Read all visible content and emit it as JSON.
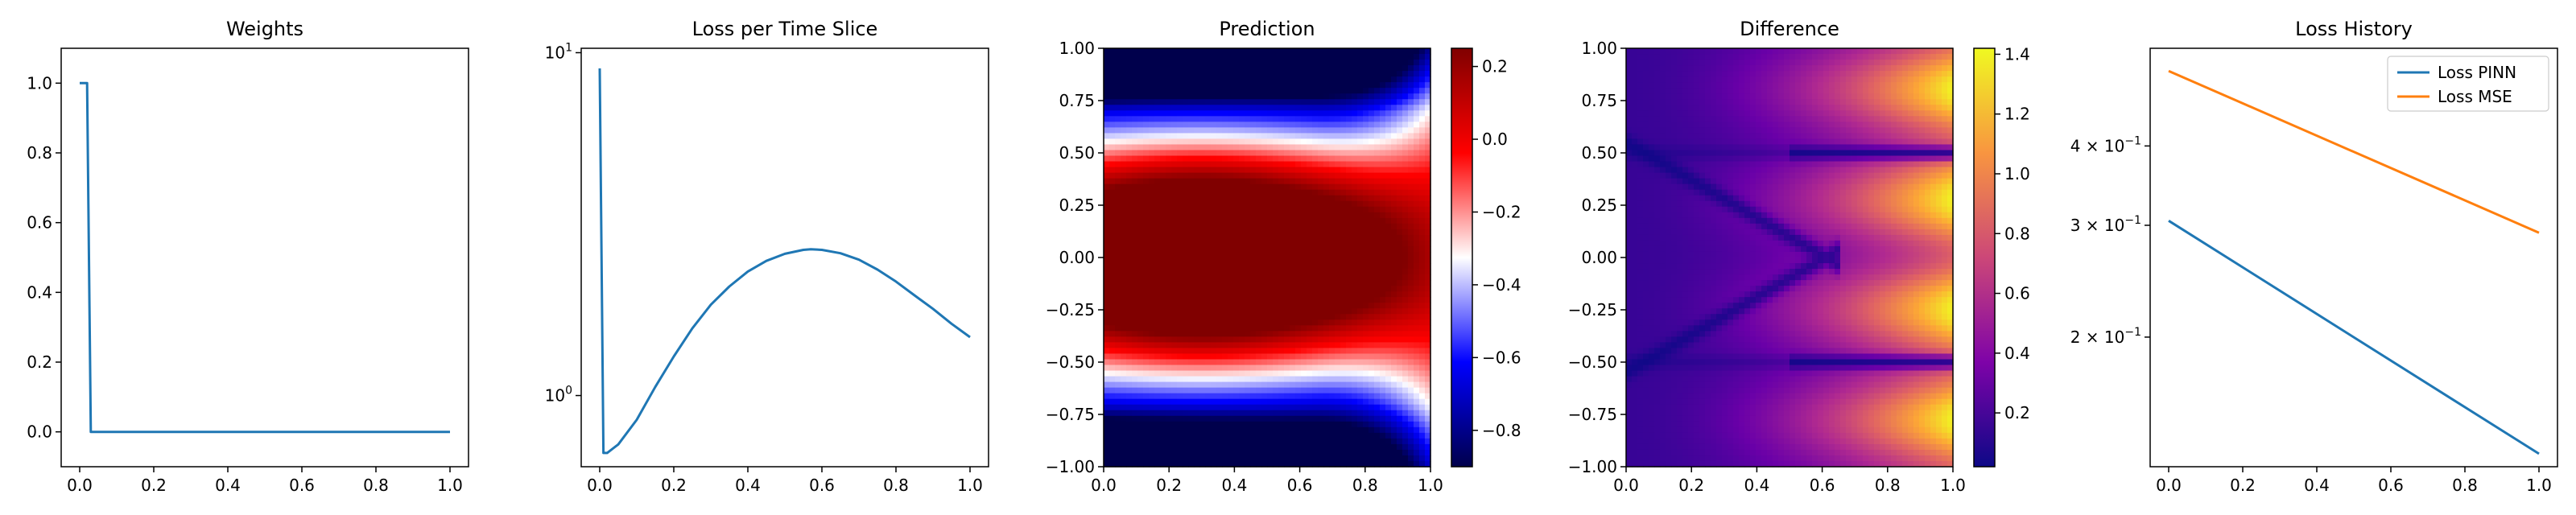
{
  "chart_data": [
    {
      "type": "line",
      "title": "Weights",
      "xlim": [
        -0.05,
        1.05
      ],
      "ylim": [
        -0.1,
        1.1
      ],
      "xticks": [
        "0.0",
        "0.2",
        "0.4",
        "0.6",
        "0.8",
        "1.0"
      ],
      "yticks": [
        "0.0",
        "0.2",
        "0.4",
        "0.6",
        "0.8",
        "1.0"
      ],
      "series": [
        {
          "x": [
            0,
            0.02,
            0.03,
            1.0
          ],
          "y": [
            1.0,
            1.0,
            0.0,
            0.0
          ],
          "color": "#1f77b4"
        }
      ]
    },
    {
      "type": "line",
      "title": "Loss per Time Slice",
      "yscale": "log",
      "xlim": [
        -0.05,
        1.05
      ],
      "ylim": [
        0.62,
        10.3
      ],
      "xticks": [
        "0.0",
        "0.2",
        "0.4",
        "0.6",
        "0.8",
        "1.0"
      ],
      "yticks": [
        {
          "value": 1,
          "label": "10",
          "exp": "0"
        },
        {
          "value": 10,
          "label": "10",
          "exp": "1"
        }
      ],
      "series": [
        {
          "x": [
            0,
            0.01,
            0.02,
            0.05,
            0.1,
            0.15,
            0.2,
            0.25,
            0.3,
            0.35,
            0.4,
            0.45,
            0.5,
            0.55,
            0.57,
            0.6,
            0.65,
            0.7,
            0.75,
            0.8,
            0.85,
            0.9,
            0.95,
            1.0
          ],
          "y": [
            9.0,
            0.68,
            0.68,
            0.72,
            0.85,
            1.06,
            1.3,
            1.57,
            1.84,
            2.08,
            2.3,
            2.47,
            2.59,
            2.66,
            2.67,
            2.66,
            2.6,
            2.49,
            2.33,
            2.15,
            1.96,
            1.79,
            1.62,
            1.48
          ],
          "color": "#1f77b4"
        }
      ]
    },
    {
      "type": "heatmap",
      "title": "Prediction",
      "colormap": "seismic",
      "xlim": [
        0,
        1
      ],
      "ylim": [
        -1,
        1
      ],
      "xticks": [
        "0.0",
        "0.2",
        "0.4",
        "0.6",
        "0.8",
        "1.0"
      ],
      "yticks": [
        "-1.00",
        "-0.75",
        "-0.50",
        "-0.25",
        "0.00",
        "0.25",
        "0.50",
        "0.75",
        "1.00"
      ],
      "colorbar": {
        "range": [
          -0.9,
          0.25
        ],
        "ticks": [
          "0.2",
          "0.0",
          "-0.2",
          "-0.4",
          "-0.6",
          "-0.8"
        ]
      }
    },
    {
      "type": "heatmap",
      "title": "Difference",
      "colormap": "plasma",
      "xlim": [
        0,
        1
      ],
      "ylim": [
        -1,
        1
      ],
      "xticks": [
        "0.0",
        "0.2",
        "0.4",
        "0.6",
        "0.8",
        "1.0"
      ],
      "yticks": [
        "-1.00",
        "-0.75",
        "-0.50",
        "-0.25",
        "0.00",
        "0.25",
        "0.50",
        "0.75",
        "1.00"
      ],
      "colorbar": {
        "range": [
          0.02,
          1.42
        ],
        "ticks": [
          "1.4",
          "1.2",
          "1.0",
          "0.8",
          "0.6",
          "0.4",
          "0.2"
        ]
      }
    },
    {
      "type": "line",
      "title": "Loss History",
      "yscale": "log",
      "xlim": [
        -0.05,
        1.05
      ],
      "ylim": [
        0.125,
        0.57
      ],
      "xticks": [
        "0.0",
        "0.2",
        "0.4",
        "0.6",
        "0.8",
        "1.0"
      ],
      "yticks": [
        {
          "value": 0.4,
          "label": "4 × 10",
          "exp": "−1"
        },
        {
          "value": 0.3,
          "label": "3 × 10",
          "exp": "−1"
        },
        {
          "value": 0.2,
          "label": "2 × 10",
          "exp": "−1"
        }
      ],
      "legend": {
        "placement": "upper-right",
        "entries": [
          "Loss PINN",
          "Loss MSE"
        ]
      },
      "series": [
        {
          "name": "Loss PINN",
          "x": [
            0,
            1
          ],
          "y": [
            0.305,
            0.131
          ],
          "color": "#1f77b4"
        },
        {
          "name": "Loss MSE",
          "x": [
            0,
            1
          ],
          "y": [
            0.525,
            0.292
          ],
          "color": "#ff7f0e"
        }
      ]
    }
  ]
}
